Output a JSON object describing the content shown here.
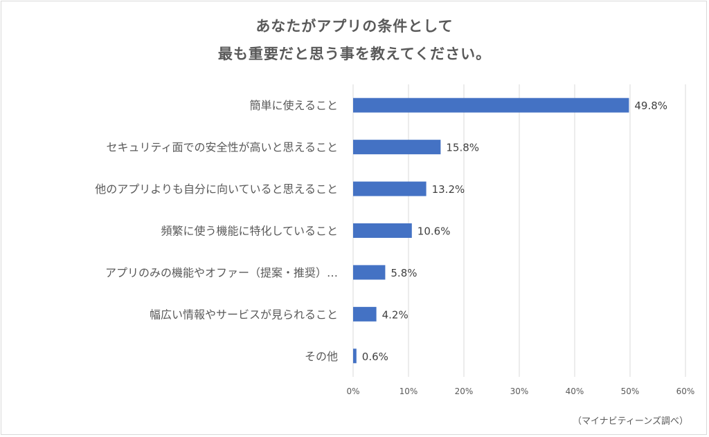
{
  "chart_data": {
    "type": "bar",
    "orientation": "horizontal",
    "title_lines": [
      "あなたがアプリの条件として",
      "最も重要だと思う事を教えてください。"
    ],
    "categories": [
      "簡単に使えること",
      "セキュリティ面での安全性が高いと思えること",
      "他のアプリよりも自分に向いていると思えること",
      "頻繁に使う機能に特化していること",
      "アプリのみの機能やオファー（提案・推奨）…",
      "幅広い情報やサービスが見られること",
      "その他"
    ],
    "values": [
      49.8,
      15.8,
      13.2,
      10.6,
      5.8,
      4.2,
      0.6
    ],
    "value_labels": [
      "49.8%",
      "15.8%",
      "13.2%",
      "10.6%",
      "5.8%",
      "4.2%",
      "0.6%"
    ],
    "xlim": [
      0,
      60
    ],
    "xticks": [
      "0%",
      "10%",
      "20%",
      "30%",
      "40%",
      "50%",
      "60%"
    ],
    "grid": "vertical",
    "bar_color": "#4472c4",
    "source_note": "（マイナビティーンズ調べ）"
  }
}
